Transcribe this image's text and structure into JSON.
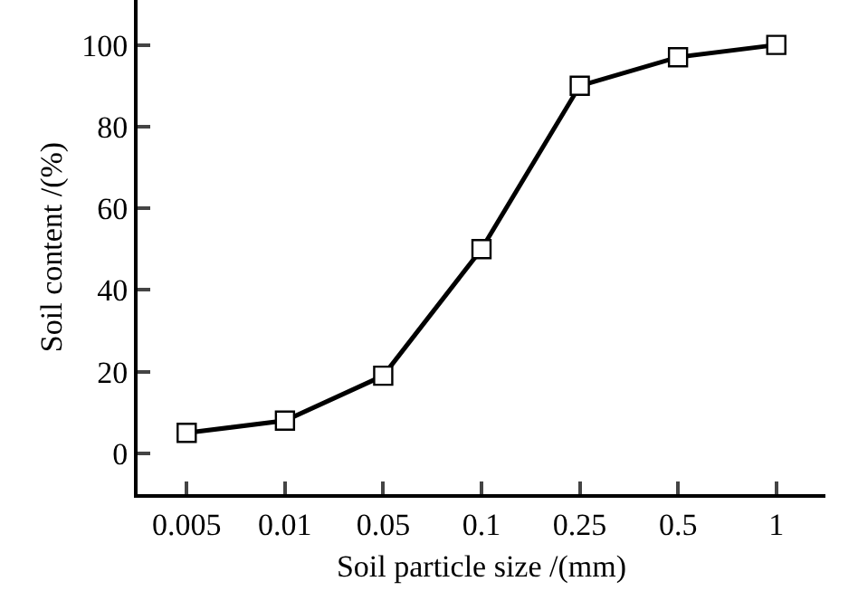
{
  "chart_data": {
    "type": "line",
    "xlabel": "Soil particle size /(mm)",
    "ylabel": "Soil content /(%)",
    "categories": [
      "0.005",
      "0.01",
      "0.05",
      "0.1",
      "0.25",
      "0.5",
      "1"
    ],
    "series": [
      {
        "color": "#000000",
        "values": [
          5,
          8,
          19,
          50,
          90,
          97,
          100
        ]
      }
    ],
    "ylim": [
      -10,
      111
    ],
    "yticks": [
      0,
      20,
      40,
      60,
      80,
      100
    ],
    "grid": false,
    "legend": false,
    "marker": "square",
    "line_style": "solid"
  }
}
